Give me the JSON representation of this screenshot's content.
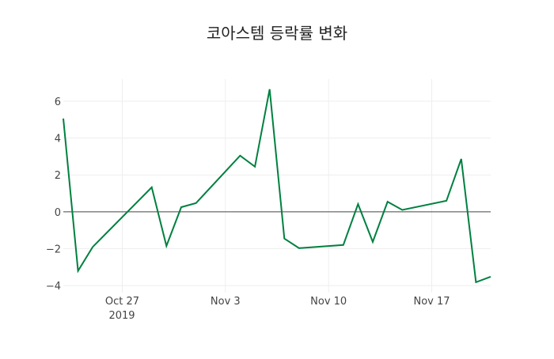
{
  "chart_data": {
    "type": "line",
    "title": "코아스템 등락률 변화",
    "xlabel": "",
    "ylabel": "",
    "x": [
      "2019-10-23",
      "2019-10-24",
      "2019-10-25",
      "2019-10-29",
      "2019-10-30",
      "2019-10-31",
      "2019-11-01",
      "2019-11-04",
      "2019-11-05",
      "2019-11-06",
      "2019-11-07",
      "2019-11-08",
      "2019-11-11",
      "2019-11-12",
      "2019-11-13",
      "2019-11-14",
      "2019-11-15",
      "2019-11-18",
      "2019-11-19",
      "2019-11-20",
      "2019-11-21"
    ],
    "series": [
      {
        "name": "등락률",
        "color": "#008040",
        "values": [
          5.06,
          -3.2,
          -1.9,
          1.33,
          -1.85,
          0.25,
          0.47,
          3.05,
          2.45,
          6.65,
          -1.45,
          -1.97,
          -1.8,
          0.42,
          -1.63,
          0.55,
          0.1,
          0.6,
          2.87,
          -3.82,
          -3.52
        ]
      }
    ],
    "xlim": [
      "2019-10-23",
      "2019-11-21"
    ],
    "ylim": [
      -4.38,
      7.2
    ],
    "yticks": [
      -4,
      -2,
      0,
      2,
      4,
      6
    ],
    "ytick_labels": [
      "−4",
      "−2",
      "0",
      "2",
      "4",
      "6"
    ],
    "xticks": [
      "2019-10-27",
      "2019-11-03",
      "2019-11-10",
      "2019-11-17"
    ],
    "xtick_labels": [
      "Oct 27",
      "Nov 3",
      "Nov 10",
      "Nov 17"
    ],
    "xtick_sublabel": "2019",
    "grid": true,
    "legend": "none"
  }
}
